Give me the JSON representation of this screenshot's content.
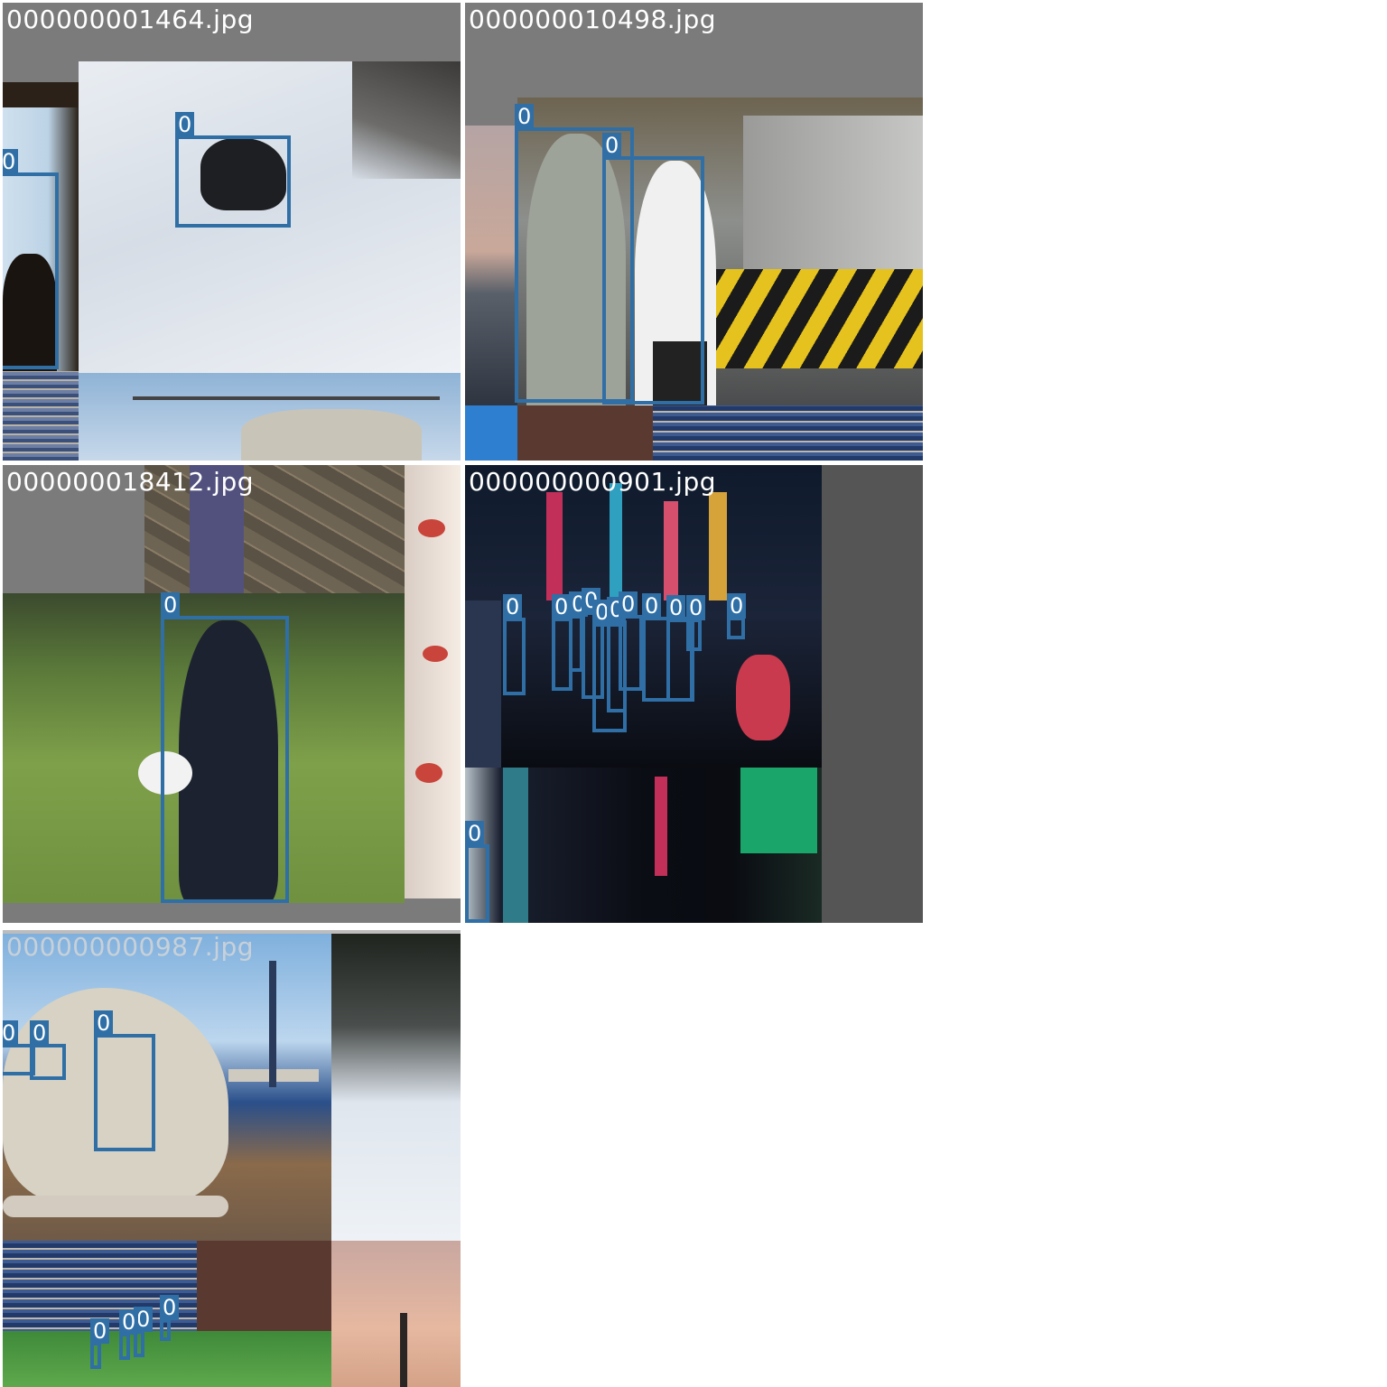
{
  "tiles": [
    {
      "filename": "000000001464.jpg"
    },
    {
      "filename": "000000010498.jpg"
    },
    {
      "filename": "000000018412.jpg"
    },
    {
      "filename": "000000000901.jpg"
    },
    {
      "filename": "000000000987.jpg"
    }
  ],
  "class_label": "0",
  "colors": {
    "box": "#2f6fa6",
    "caption": "#ffffff",
    "padding_gray": "#7b7b7b",
    "page_bg": "#ffffff"
  }
}
